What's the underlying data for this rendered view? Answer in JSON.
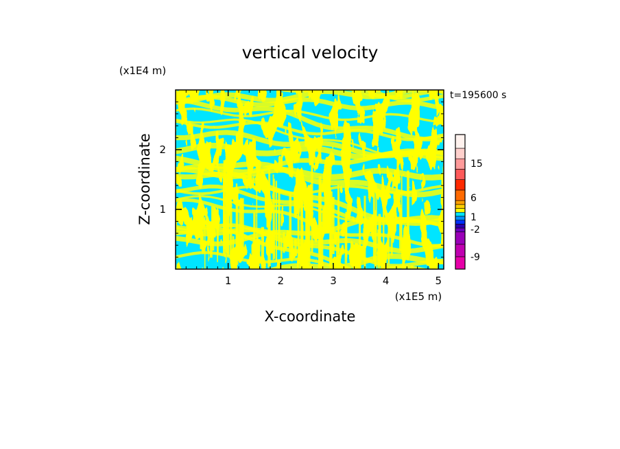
{
  "chart_data": {
    "type": "heatmap",
    "title": "vertical velocity",
    "xlabel": "X-coordinate",
    "ylabel": "Z-coordinate",
    "x_unit": "(x1E5 m)",
    "y_unit": "(x1E4 m)",
    "time_label": "t=195600 s",
    "xlim": [
      0,
      5.1
    ],
    "ylim": [
      0,
      3.0
    ],
    "x_ticks": [
      "1",
      "2",
      "3",
      "4",
      "5"
    ],
    "y_ticks": [
      "1",
      "2"
    ],
    "dominant_levels": [
      {
        "range": "0 to 1",
        "color": "#ffff00"
      },
      {
        "range": "-1 to 0",
        "color": "#00e5ff"
      }
    ],
    "colorbar": {
      "tick_labels": [
        "15",
        "6",
        "1",
        "-2",
        "-9"
      ],
      "bands_bottom_to_top": [
        {
          "color": "#e600a8"
        },
        {
          "color": "#c000b0"
        },
        {
          "color": "#9a00b8"
        },
        {
          "color": "#6a00c0"
        },
        {
          "color": "#2a00b0"
        },
        {
          "color": "#0030ff"
        },
        {
          "color": "#0090ff"
        },
        {
          "color": "#00e5ff"
        },
        {
          "color": "#ffff00"
        },
        {
          "color": "#ffd000"
        },
        {
          "color": "#ffa000"
        },
        {
          "color": "#ff6a00"
        },
        {
          "color": "#ff2a00"
        },
        {
          "color": "#ff5a5a"
        },
        {
          "color": "#ff9a9a"
        },
        {
          "color": "#ffd0cc"
        },
        {
          "color": "#fff2ee"
        }
      ]
    }
  }
}
